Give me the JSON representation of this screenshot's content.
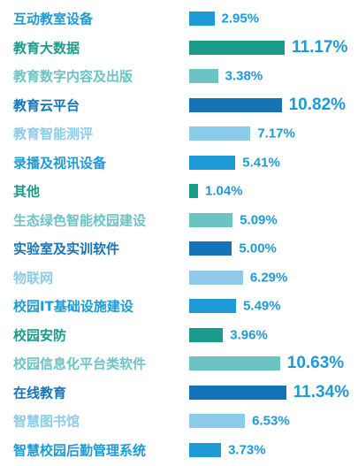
{
  "chart_data": {
    "type": "bar",
    "orientation": "horizontal",
    "categories": [
      "互动教室设备",
      "教育大数据",
      "教育数字内容及出版",
      "教育云平台",
      "教育智能测评",
      "录播及视讯设备",
      "其他",
      "生态绿色智能校园建设",
      "实验室及实训软件",
      "物联网",
      "校园IT基础设施建设",
      "校园安防",
      "校园信息化平台类软件",
      "在线教育",
      "智慧图书馆",
      "智慧校园后勤管理系统"
    ],
    "values": [
      2.95,
      11.17,
      3.38,
      10.82,
      7.17,
      5.41,
      1.04,
      5.09,
      5.0,
      6.29,
      5.49,
      3.96,
      10.63,
      11.34,
      6.53,
      3.73
    ],
    "value_labels": [
      "2.95%",
      "11.17%",
      "3.38%",
      "10.82%",
      "7.17%",
      "5.41%",
      "1.04%",
      "5.09%",
      "5.00%",
      "6.29%",
      "5.49%",
      "3.96%",
      "10.63%",
      "11.34%",
      "6.53%",
      "3.73%"
    ],
    "colors": [
      "#1e9ad6",
      "#1a9b8c",
      "#6cc3c4",
      "#1574b8",
      "#8ccbea",
      "#1e9ad6",
      "#1a9b8c",
      "#6cc3c4",
      "#1574b8",
      "#8ccbea",
      "#1e9ad6",
      "#1a9b8c",
      "#6cc3c4",
      "#1574b8",
      "#8ccbea",
      "#1e9ad6"
    ],
    "category_label_colors": [
      "#1e9ad6",
      "#1a9b8c",
      "#6cc3c4",
      "#1574b8",
      "#8ccbea",
      "#1e9ad6",
      "#1a9b8c",
      "#6cc3c4",
      "#1574b8",
      "#8ccbea",
      "#1e9ad6",
      "#1a9b8c",
      "#6cc3c4",
      "#1574b8",
      "#8ccbea",
      "#1e9ad6"
    ],
    "value_label_color": "#1e9ad6",
    "xlim": [
      0,
      11.5
    ],
    "grid": false,
    "legend": "none"
  }
}
